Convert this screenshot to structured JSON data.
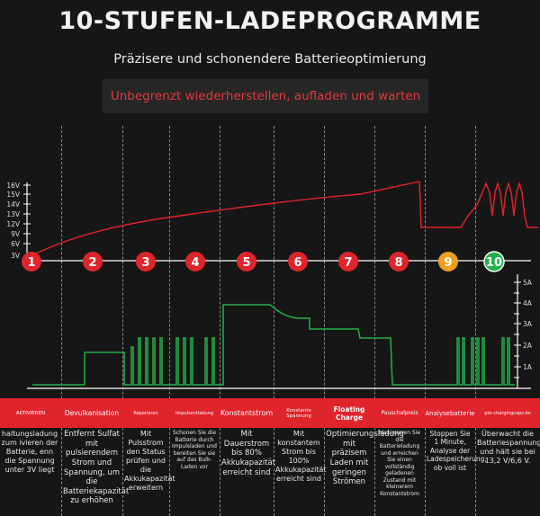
{
  "title": "10-STUFEN-LADEPROGRAMME",
  "subtitle": "Präzisere und schonendere Batterieoptimierung",
  "banner": "Unbegrenzt wiederherstellen, aufladen und warten",
  "voltage_axis": [
    "16V",
    "15V",
    "14V",
    "13V",
    "12V",
    "9V",
    "6V",
    "3V"
  ],
  "current_axis": [
    "5A",
    "4A",
    "3A",
    "2A",
    "1A"
  ],
  "steps": [
    {
      "num": "1",
      "color": "#e0242c",
      "name": "AKTIVIEREN",
      "desc": "haltungsladung zum ivieren der Batterie, enn die Spannung unter 3V liegt"
    },
    {
      "num": "2",
      "color": "#e0242c",
      "name": "Devulkanisation",
      "desc": "Entfernt Sulfat mit pulsierendem Strom und Spannung, um die Batteriekapazität zu erhöhen"
    },
    {
      "num": "3",
      "color": "#e0242c",
      "name": "Reparieren",
      "desc": "Mit Pulsstrom den Status prüfen und die Akkukapazität erweitern"
    },
    {
      "num": "4",
      "color": "#e0242c",
      "name": "Impulsentladung",
      "desc": "Schonen Sie die Batterie durch Impulsladen und bereiten Sie sie auf das Bulk-Laden vor"
    },
    {
      "num": "5",
      "color": "#e0242c",
      "name": "Konstantstrom",
      "desc": "Mit Dauerstrom bis 80% Akkukapazität erreicht sind"
    },
    {
      "num": "6",
      "color": "#e0242c",
      "name": "Konstante Spannung",
      "desc": "Mit konstantem Strom bis 100% Akkukapazität erreicht sind"
    },
    {
      "num": "7",
      "color": "#e0242c",
      "name": "Floating Charge",
      "desc": "Optimierungsladung mit präzisem Laden mit geringen Strömen"
    },
    {
      "num": "8",
      "color": "#e0242c",
      "name": "Pauschalpreis",
      "desc": "Maximieren Sie die Batterieladung und erreichen Sie einen vollständig geladenen Zustand mit kleinerem Konstantstrom"
    },
    {
      "num": "9",
      "color": "#f0a020",
      "name": "Analysebatterie",
      "desc": "Stoppen Sie 1 Minute, Analyse der Ladespeicherung, ob voll ist"
    },
    {
      "num": "10",
      "color": "#22b04a",
      "name": "pro-chargingcaps.de",
      "desc": "Überwacht die Batteriespannung und hält sie bei 13,2 V/6,6 V."
    }
  ]
}
